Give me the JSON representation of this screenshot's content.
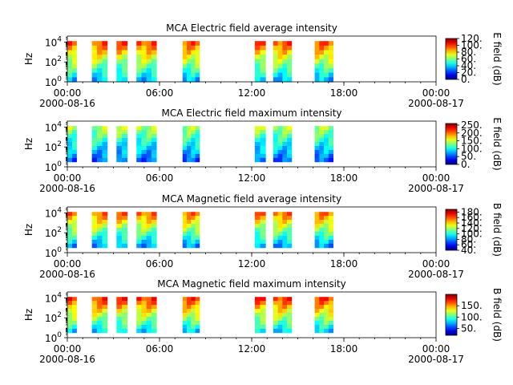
{
  "chart_data": [
    {
      "type": "heatmap",
      "title": "MCA  Electric field average intensity",
      "ylabel": "Hz",
      "yscale": "log",
      "ylim_exp": [
        0,
        4.6
      ],
      "y_ticks": [
        {
          "base": "10",
          "exp": "0",
          "v": 0
        },
        {
          "base": "10",
          "exp": "2",
          "v": 2
        },
        {
          "base": "10",
          "exp": "4",
          "v": 4
        }
      ],
      "xlim_hours": [
        0,
        24
      ],
      "x_ticks": [
        {
          "h": 0,
          "time": "00:00",
          "date": "2000-08-16"
        },
        {
          "h": 6,
          "time": "06:00",
          "date": ""
        },
        {
          "h": 12,
          "time": "12:00",
          "date": ""
        },
        {
          "h": 18,
          "time": "18:00",
          "date": ""
        },
        {
          "h": 24,
          "time": "00:00",
          "date": "2000-08-17"
        }
      ],
      "colorbar": {
        "label": "E field (dB)",
        "range": [
          0,
          120
        ],
        "ticks": [
          "0.",
          "20.",
          "40.",
          "60.",
          "80.",
          "100.",
          "120."
        ]
      },
      "data_intervals_hours": [
        [
          -0.1,
          0.6
        ],
        [
          1.6,
          2.6
        ],
        [
          3.2,
          3.9
        ],
        [
          4.5,
          5.8
        ],
        [
          7.5,
          8.6
        ],
        [
          12.2,
          12.9
        ],
        [
          13.4,
          14.6
        ],
        [
          16.1,
          17.3
        ]
      ],
      "band_exp": [
        0,
        4.1
      ],
      "level": [
        0.55,
        0.3
      ]
    },
    {
      "type": "heatmap",
      "title": "MCA  Electric field maximum intensity",
      "ylabel": "Hz",
      "yscale": "log",
      "ylim_exp": [
        0,
        4.6
      ],
      "y_ticks": [
        {
          "base": "10",
          "exp": "0",
          "v": 0
        },
        {
          "base": "10",
          "exp": "2",
          "v": 2
        },
        {
          "base": "10",
          "exp": "4",
          "v": 4
        }
      ],
      "xlim_hours": [
        0,
        24
      ],
      "x_ticks": [
        {
          "h": 0,
          "time": "00:00",
          "date": "2000-08-16"
        },
        {
          "h": 6,
          "time": "06:00",
          "date": ""
        },
        {
          "h": 12,
          "time": "12:00",
          "date": ""
        },
        {
          "h": 18,
          "time": "18:00",
          "date": ""
        },
        {
          "h": 24,
          "time": "00:00",
          "date": "2000-08-17"
        }
      ],
      "colorbar": {
        "label": "E field (dB)",
        "range": [
          0,
          260
        ],
        "ticks": [
          "0.",
          "50.",
          "100.",
          "150.",
          "200.",
          "250."
        ]
      },
      "data_intervals_hours": [
        [
          -0.1,
          0.6
        ],
        [
          1.6,
          2.6
        ],
        [
          3.2,
          3.9
        ],
        [
          4.5,
          5.8
        ],
        [
          7.5,
          8.6
        ],
        [
          12.2,
          12.9
        ],
        [
          13.4,
          14.6
        ],
        [
          16.1,
          17.3
        ]
      ],
      "band_exp": [
        0.5,
        4.1
      ],
      "level": [
        0.38,
        0.2
      ]
    },
    {
      "type": "heatmap",
      "title": "MCA  Magnetic field average intensity",
      "ylabel": "Hz",
      "yscale": "log",
      "ylim_exp": [
        0,
        4.6
      ],
      "y_ticks": [
        {
          "base": "10",
          "exp": "0",
          "v": 0
        },
        {
          "base": "10",
          "exp": "2",
          "v": 2
        },
        {
          "base": "10",
          "exp": "4",
          "v": 4
        }
      ],
      "xlim_hours": [
        0,
        24
      ],
      "x_ticks": [
        {
          "h": 0,
          "time": "00:00",
          "date": "2000-08-16"
        },
        {
          "h": 6,
          "time": "06:00",
          "date": ""
        },
        {
          "h": 12,
          "time": "12:00",
          "date": ""
        },
        {
          "h": 18,
          "time": "18:00",
          "date": ""
        },
        {
          "h": 24,
          "time": "00:00",
          "date": "2000-08-17"
        }
      ],
      "colorbar": {
        "label": "B field (dB)",
        "range": [
          40,
          190
        ],
        "ticks": [
          "40.",
          "60.",
          "80.",
          "100.",
          "120.",
          "140.",
          "160.",
          "180."
        ]
      },
      "data_intervals_hours": [
        [
          -0.1,
          0.6
        ],
        [
          1.6,
          2.6
        ],
        [
          3.2,
          3.9
        ],
        [
          4.5,
          5.8
        ],
        [
          7.5,
          8.6
        ],
        [
          12.2,
          12.9
        ],
        [
          13.4,
          14.6
        ],
        [
          16.1,
          17.3
        ]
      ],
      "band_exp": [
        0.5,
        4.1
      ],
      "level": [
        0.52,
        0.3
      ]
    },
    {
      "type": "heatmap",
      "title": "MCA  Magnetic field maximum intensity",
      "ylabel": "Hz",
      "yscale": "log",
      "ylim_exp": [
        0,
        4.6
      ],
      "y_ticks": [
        {
          "base": "10",
          "exp": "0",
          "v": 0
        },
        {
          "base": "10",
          "exp": "2",
          "v": 2
        },
        {
          "base": "10",
          "exp": "4",
          "v": 4
        }
      ],
      "xlim_hours": [
        0,
        24
      ],
      "x_ticks": [
        {
          "h": 0,
          "time": "00:00",
          "date": "2000-08-16"
        },
        {
          "h": 6,
          "time": "06:00",
          "date": ""
        },
        {
          "h": 12,
          "time": "12:00",
          "date": ""
        },
        {
          "h": 18,
          "time": "18:00",
          "date": ""
        },
        {
          "h": 24,
          "time": "00:00",
          "date": "2000-08-17"
        }
      ],
      "colorbar": {
        "label": "B field (dB)",
        "range": [
          20,
          200
        ],
        "ticks": [
          "50.",
          "100.",
          "150."
        ]
      },
      "data_intervals_hours": [
        [
          -0.1,
          0.6
        ],
        [
          1.6,
          2.6
        ],
        [
          3.2,
          3.9
        ],
        [
          4.5,
          5.8
        ],
        [
          7.5,
          8.6
        ],
        [
          12.2,
          12.9
        ],
        [
          13.4,
          14.6
        ],
        [
          16.1,
          17.3
        ]
      ],
      "band_exp": [
        0.5,
        4.1
      ],
      "level": [
        0.58,
        0.3
      ]
    }
  ]
}
